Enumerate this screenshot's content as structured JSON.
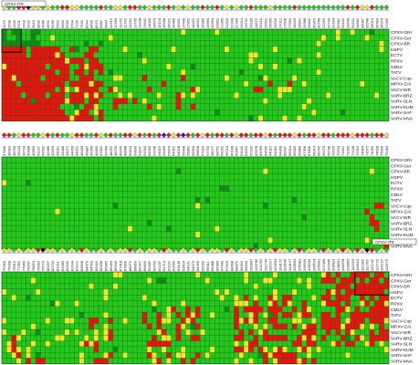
{
  "figure": {
    "legend_colors": {
      "present": "#22c91a",
      "present_dark": "#0f8c1a",
      "absent": "#e8150e",
      "fragment": "#f0e62a",
      "marker_blue": "#1c1cd8",
      "marker_black": "#000000",
      "divider": "#2b2bb0"
    },
    "panels": [
      {
        "id": "panel-1",
        "boxed_label": "CPXV-ITR",
        "boxed_label_side": "left",
        "row_labels": [
          "CPXV-GRI",
          "CPXV-Ger",
          "CPXV-BR",
          "HSPV",
          "ECTV",
          "RPXV",
          "CMLV",
          "TATV",
          "VACV-Cop",
          "MPXV-ZAI",
          "VACV-WR",
          "VARV-BRZ",
          "VARV-SLN",
          "VARV-KUM",
          "VARV-SAF",
          "VARV-MVA"
        ],
        "column_numbers": [
          "1270",
          "1598",
          "1945",
          "2201",
          "2418",
          "3032",
          "3410",
          "3899",
          "4286",
          "4651",
          "5036",
          "5462",
          "5850",
          "6290",
          "6704",
          "7155",
          "7630",
          "8044",
          "8490",
          "8970",
          "9382",
          "9844",
          "10215",
          "10780",
          "11243",
          "11702",
          "12291",
          "12735",
          "13208",
          "13642",
          "14090",
          "14570",
          "15104",
          "15598",
          "16022",
          "16489",
          "16931",
          "17440",
          "17952",
          "18431",
          "18922",
          "19386",
          "19860",
          "20394",
          "20861",
          "21305",
          "21829",
          "22340",
          "22783",
          "23214",
          "23731",
          "24189",
          "24672",
          "25110",
          "25601",
          "26050",
          "26533",
          "27012",
          "27508",
          "27992",
          "28420",
          "28901",
          "29388",
          "29842",
          "30315",
          "30788",
          "31256",
          "31730",
          "32204",
          "32681",
          "33152",
          "33640",
          "34101",
          "34582",
          "35067",
          "35548",
          "36010",
          "36494",
          "36970",
          "37455"
        ],
        "marker_colors": [
          "fragment",
          "present",
          "present",
          "absent",
          "absent",
          "marker_black",
          "fragment",
          "fragment",
          "present",
          "fragment",
          "present",
          "present",
          "absent",
          "absent",
          "fragment",
          "fragment",
          "present",
          "present",
          "present",
          "present",
          "absent",
          "present",
          "present",
          "fragment",
          "fragment",
          "present",
          "absent",
          "absent",
          "present",
          "present",
          "fragment",
          "present",
          "present",
          "present",
          "absent",
          "present",
          "fragment",
          "present",
          "fragment",
          "present",
          "present",
          "absent",
          "present",
          "present",
          "absent",
          "present",
          "fragment",
          "present",
          "fragment",
          "present",
          "present",
          "absent",
          "present",
          "present",
          "present",
          "fragment",
          "present",
          "present",
          "present",
          "present",
          "absent",
          "present",
          "present",
          "present",
          "present",
          "present",
          "present",
          "present",
          "present",
          "present",
          "present",
          "absent",
          "present",
          "absent",
          "fragment",
          "fragment",
          "absent",
          "present",
          "present",
          "present"
        ]
      },
      {
        "id": "panel-2",
        "boxed_label": "",
        "boxed_label_side": "left",
        "row_labels": [
          "CPXV-GRI",
          "CPXV-Ger",
          "CPXV-BR",
          "HSPV",
          "ECTV",
          "RPXV",
          "CMLV",
          "TATV",
          "VACV-Cop",
          "MPXV-ZAI",
          "VACV-WR",
          "VARV-BRZ",
          "VARV-SLN",
          "VARV-KUM",
          "VARV-SAF",
          "VARV-MVA"
        ],
        "column_numbers": [
          "37840",
          "38301",
          "38790",
          "39244",
          "39720",
          "40188",
          "40663",
          "41137",
          "41602",
          "42089",
          "42550",
          "43031",
          "43488",
          "43972",
          "44450",
          "44921",
          "45403",
          "45887",
          "46350",
          "46832",
          "47301",
          "47789",
          "48252",
          "48730",
          "49205",
          "49688",
          "50154",
          "50639",
          "51107",
          "51593",
          "52060",
          "52548",
          "53015",
          "53499",
          "53970",
          "54452",
          "54928",
          "55408",
          "55881",
          "56364",
          "56838",
          "57320",
          "57795",
          "58277",
          "58752",
          "59231",
          "59710",
          "60188",
          "60667",
          "61145",
          "61622",
          "62101",
          "62578",
          "63056",
          "63535",
          "64012",
          "64491",
          "64968",
          "65447",
          "65924",
          "66402",
          "66880",
          "67358",
          "67836",
          "68314",
          "68792",
          "69270",
          "69748",
          "70226",
          "70704",
          "71182",
          "71660",
          "72138",
          "72616",
          "73094",
          "73572",
          "74050",
          "74528",
          "75006",
          "75484"
        ],
        "marker_colors": [
          "absent",
          "absent",
          "present",
          "fragment",
          "absent",
          "absent",
          "present",
          "present",
          "fragment",
          "absent",
          "present",
          "absent",
          "present",
          "present",
          "fragment",
          "absent",
          "absent",
          "present",
          "present",
          "absent",
          "fragment",
          "present",
          "absent",
          "present",
          "present",
          "absent",
          "absent",
          "fragment",
          "absent",
          "present",
          "absent",
          "present",
          "absent",
          "marker_blue",
          "absent",
          "fragment",
          "absent",
          "marker_blue",
          "absent",
          "present",
          "absent",
          "fragment",
          "absent",
          "present",
          "absent",
          "absent",
          "present",
          "absent",
          "fragment",
          "absent",
          "absent",
          "present",
          "absent",
          "absent",
          "fragment",
          "absent",
          "present",
          "absent",
          "absent",
          "absent",
          "fragment",
          "absent",
          "present",
          "absent",
          "absent",
          "fragment",
          "absent",
          "absent",
          "present",
          "absent",
          "absent",
          "absent",
          "fragment",
          "absent",
          "absent",
          "absent",
          "present",
          "absent",
          "absent",
          "fragment"
        ]
      },
      {
        "id": "panel-3",
        "boxed_label": "CPXV-ITR",
        "boxed_label_side": "right",
        "row_labels": [
          "CPXV-GRI",
          "CPXV-Ger",
          "CPXV-BR",
          "HSPV",
          "ECTV",
          "RPXV",
          "CMLV",
          "TATV",
          "VACV-Cop",
          "MPXV-ZAI",
          "VACV-WR",
          "VARV-BRZ",
          "VARV-SLN",
          "VARV-KUM",
          "VARV-SAF",
          "VARV-MVA"
        ],
        "column_numbers": [
          "75960",
          "76438",
          "76915",
          "77392",
          "77869",
          "78347",
          "78824",
          "79302",
          "79779",
          "80257",
          "80734",
          "81211",
          "81689",
          "82166",
          "82644",
          "83121",
          "83598",
          "84076",
          "84553",
          "85031",
          "85508",
          "85985",
          "86463",
          "86940",
          "87418",
          "87895",
          "88372",
          "88850",
          "89327",
          "89805",
          "90282",
          "90759",
          "91237",
          "91714",
          "92192",
          "92669",
          "93146",
          "93624",
          "94101",
          "94579",
          "95056",
          "95533",
          "96011",
          "96488",
          "96966",
          "97443",
          "97920",
          "98398",
          "98875",
          "99353",
          "99830",
          "100307",
          "100785",
          "101262",
          "101740",
          "102217",
          "102694",
          "103172",
          "103649",
          "104127",
          "104604",
          "105081",
          "105559",
          "106036",
          "106514",
          "106991",
          "107468",
          "107946",
          "108423",
          "108901",
          "109378",
          "109855",
          "110333",
          "110810",
          "111288",
          "111765",
          "112242",
          "112720",
          "113197",
          "113675"
        ],
        "marker_colors": [
          "fragment",
          "fragment",
          "present",
          "fragment",
          "present",
          "fragment",
          "fragment",
          "absent",
          "marker_black",
          "fragment",
          "fragment",
          "present",
          "fragment",
          "present",
          "fragment",
          "present",
          "absent",
          "fragment",
          "present",
          "present",
          "fragment",
          "present",
          "fragment",
          "present",
          "fragment",
          "fragment",
          "absent",
          "present",
          "fragment",
          "present",
          "fragment",
          "fragment",
          "present",
          "absent",
          "fragment",
          "present",
          "present",
          "fragment",
          "present",
          "fragment",
          "absent",
          "fragment",
          "present",
          "fragment",
          "fragment",
          "present",
          "absent",
          "fragment",
          "present",
          "fragment",
          "fragment",
          "absent",
          "present",
          "fragment",
          "present",
          "fragment",
          "absent",
          "fragment",
          "fragment",
          "present",
          "fragment",
          "absent",
          "present",
          "fragment",
          "fragment",
          "present",
          "absent",
          "fragment",
          "present",
          "fragment",
          "absent",
          "fragment",
          "present",
          "absent",
          "fragment",
          "marker_black",
          "absent",
          "present",
          "fragment",
          "present"
        ]
      }
    ]
  }
}
